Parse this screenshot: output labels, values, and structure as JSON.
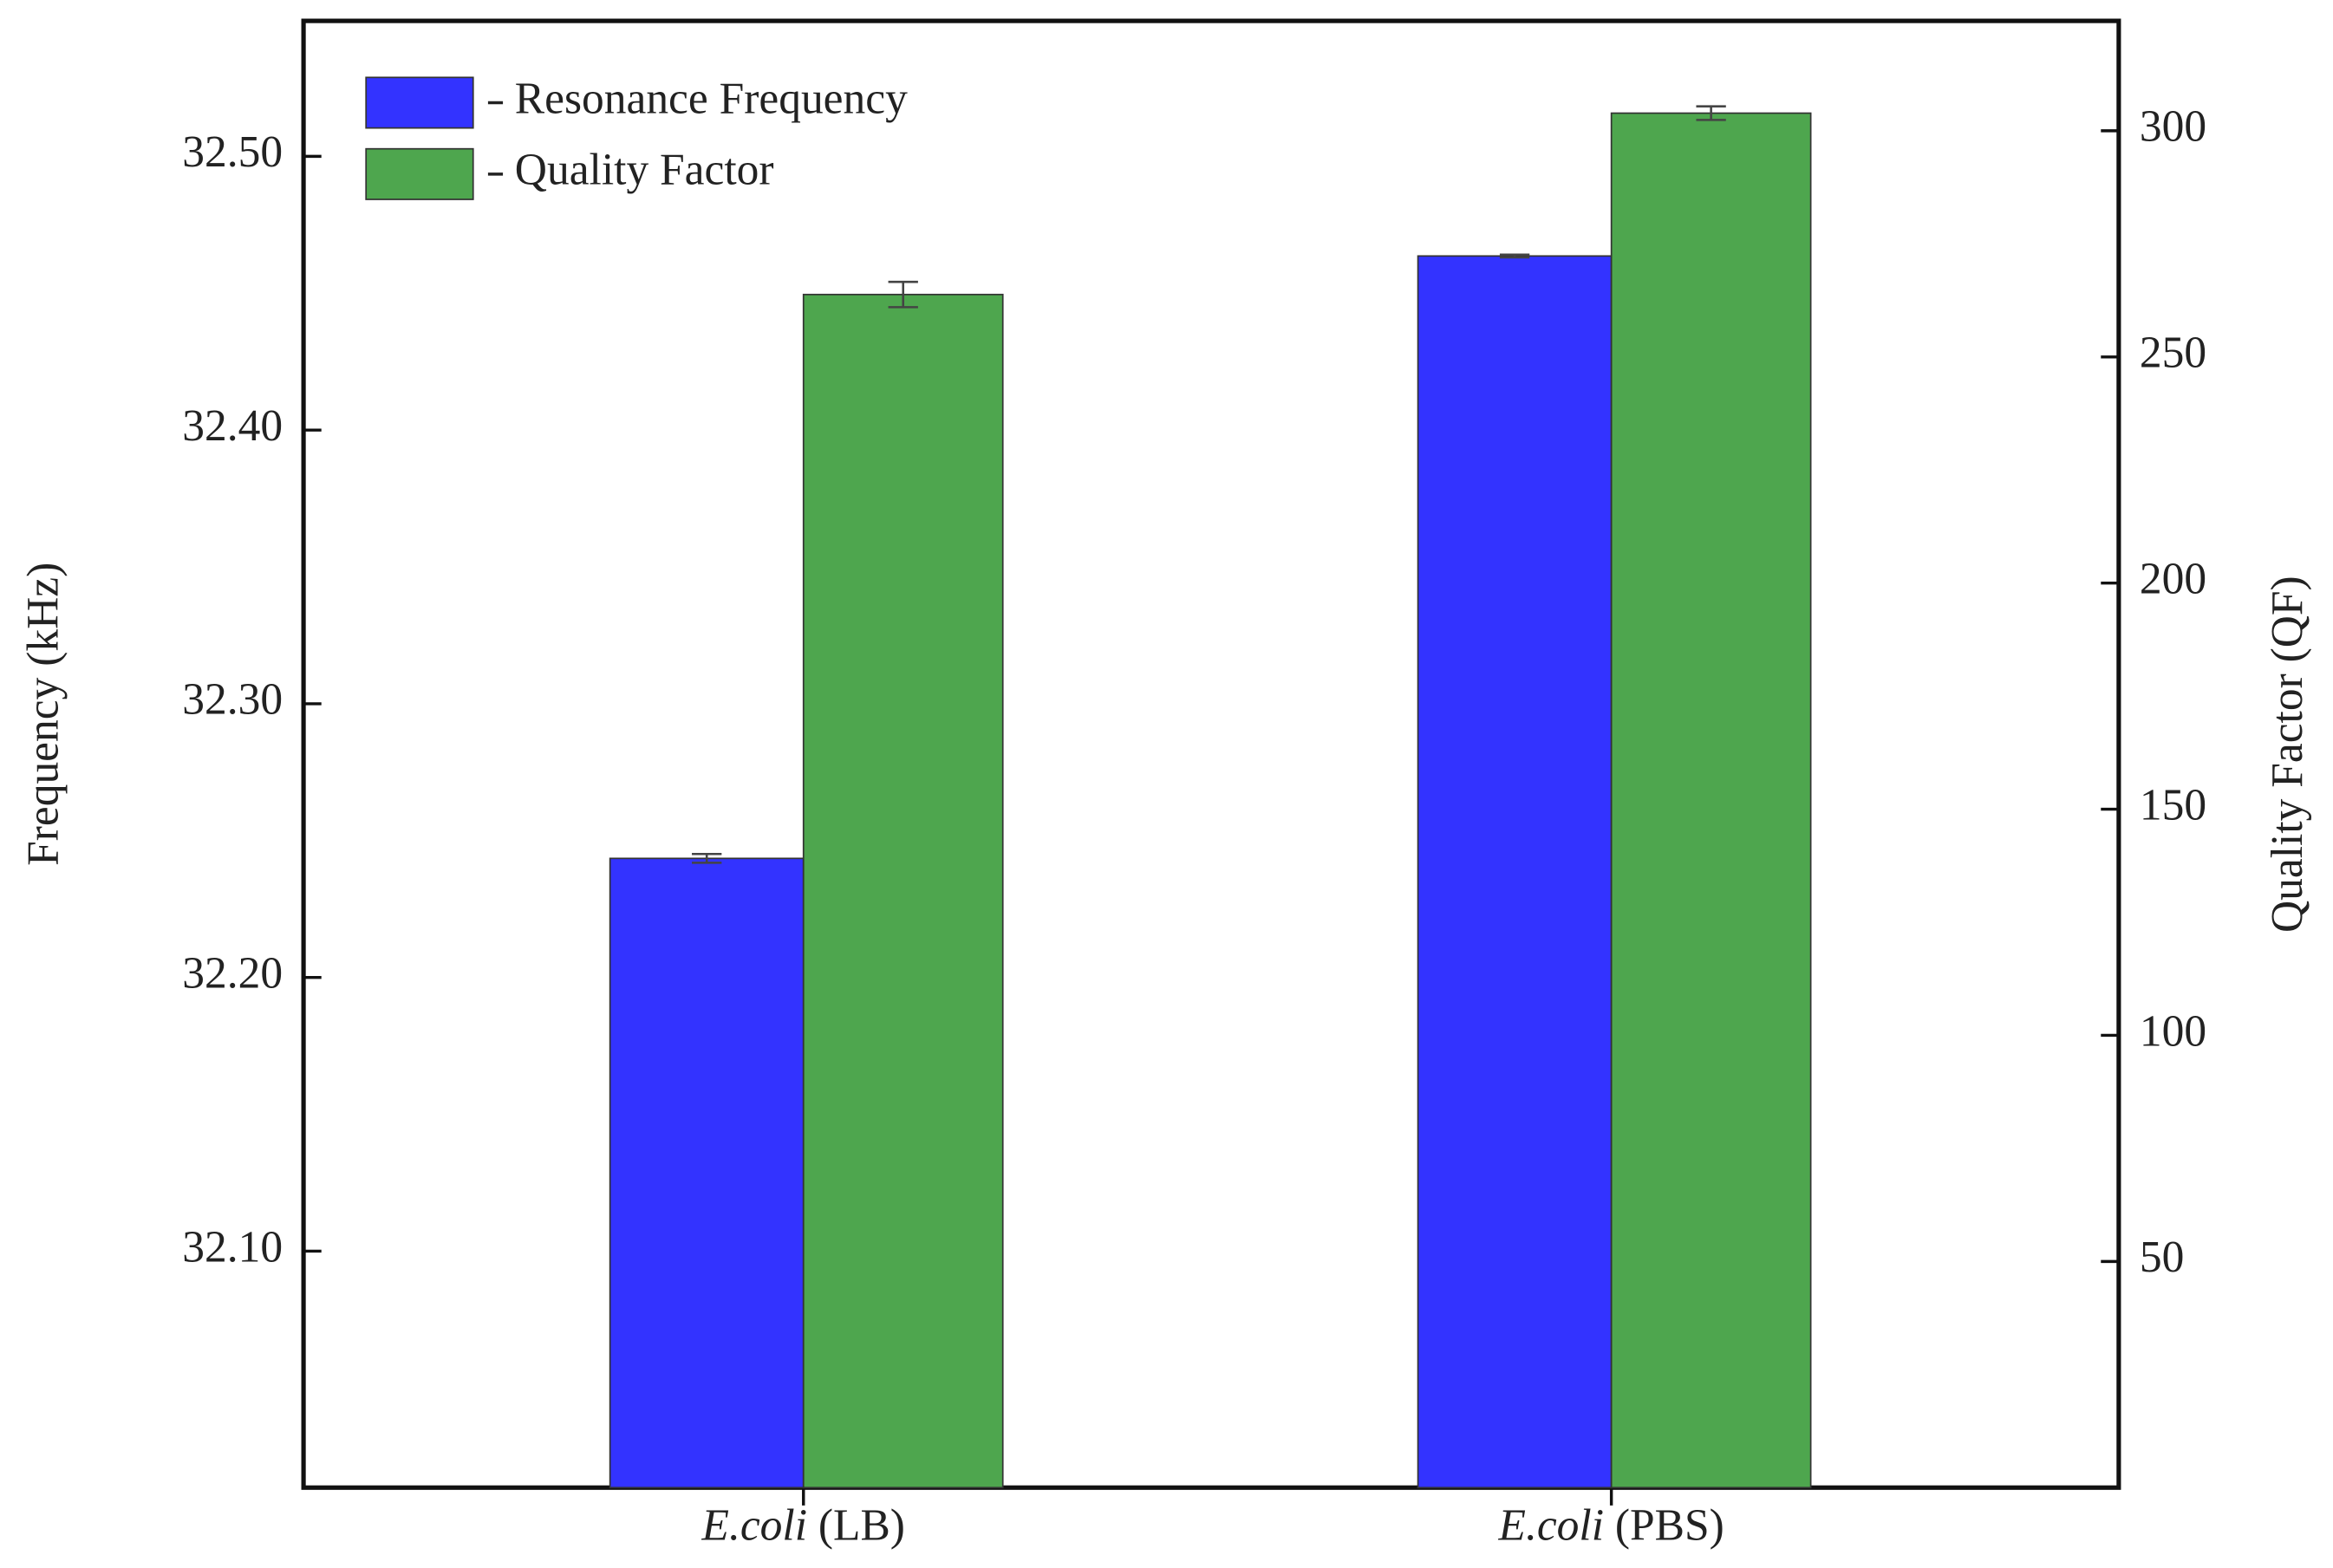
{
  "chart_data": {
    "type": "bar",
    "categories": [
      {
        "species": "E.coli",
        "medium": "(LB)"
      },
      {
        "species": "E.coli",
        "medium": "(PBS)"
      }
    ],
    "ylabel": "Frequency (kHz)",
    "y2label": "Quality Factor (QF)",
    "ylim": [
      32.0136,
      32.5495
    ],
    "yticks": [
      {
        "value": 32.1,
        "label": "32.10"
      },
      {
        "value": 32.2,
        "label": "32.20"
      },
      {
        "value": 32.3,
        "label": "32.30"
      },
      {
        "value": 32.4,
        "label": "32.40"
      },
      {
        "value": 32.5,
        "label": "32.50"
      }
    ],
    "y2lim": [
      0,
      324.3
    ],
    "y2ticks": [
      50,
      100,
      150,
      200,
      250,
      300
    ],
    "legend": "upper left",
    "series": [
      {
        "name": "Resonance Frequency",
        "color": "#3333ff",
        "values": [
          32.2435,
          32.4636
        ],
        "errors": [
          0.0016,
          0.0005
        ]
      },
      {
        "name": "Quality Factor",
        "color": "#4ea64e",
        "axis": "y2",
        "values": [
          263.8,
          303.9
        ],
        "errors": [
          2.8,
          1.5
        ]
      }
    ]
  }
}
